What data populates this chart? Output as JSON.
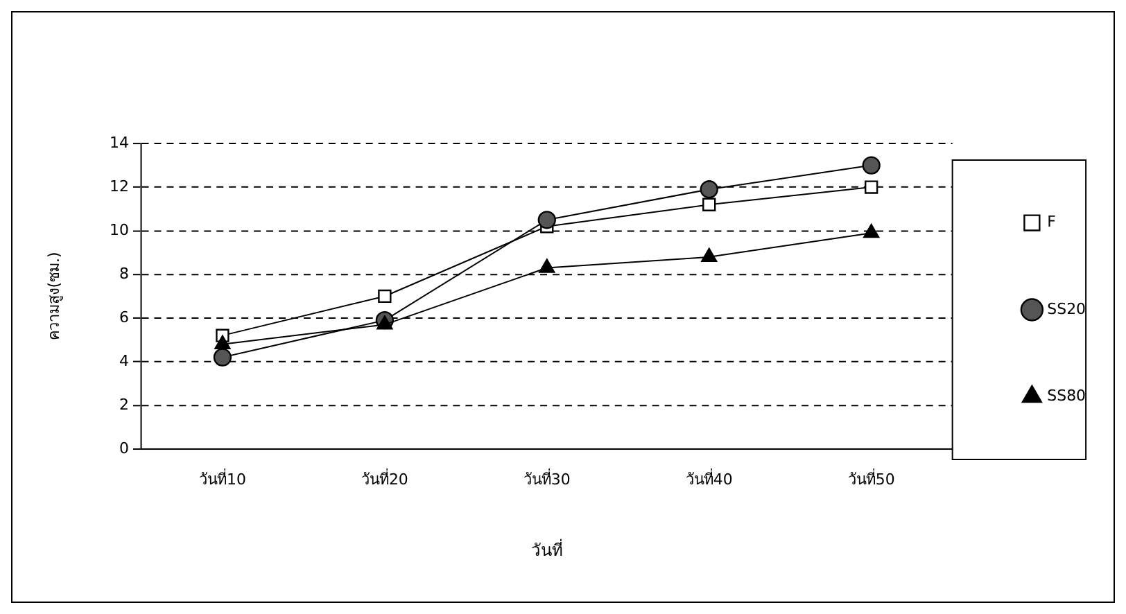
{
  "chart_data": {
    "type": "line",
    "xlabel": "วันที่",
    "ylabel": "ความสูง(ซม.)",
    "categories": [
      "วันที่10",
      "วันที่20",
      "วันที่30",
      "วันที่40",
      "วันที่50"
    ],
    "series": [
      {
        "name": "F",
        "color": "#000000",
        "marker": "square",
        "values": [
          5.2,
          7.0,
          10.2,
          11.2,
          12.0
        ]
      },
      {
        "name": "SS20",
        "color": "#000000",
        "marker": "circle",
        "values": [
          4.2,
          5.9,
          10.5,
          11.9,
          13.0
        ]
      },
      {
        "name": "SS80",
        "color": "#000000",
        "marker": "triangle",
        "values": [
          4.8,
          5.7,
          8.3,
          8.8,
          9.9
        ]
      }
    ],
    "ylim": [
      0,
      14
    ],
    "yticks": [
      0,
      2,
      4,
      6,
      8,
      10,
      12,
      14
    ],
    "grid": "y",
    "line_style": "solid",
    "legend": "right"
  }
}
